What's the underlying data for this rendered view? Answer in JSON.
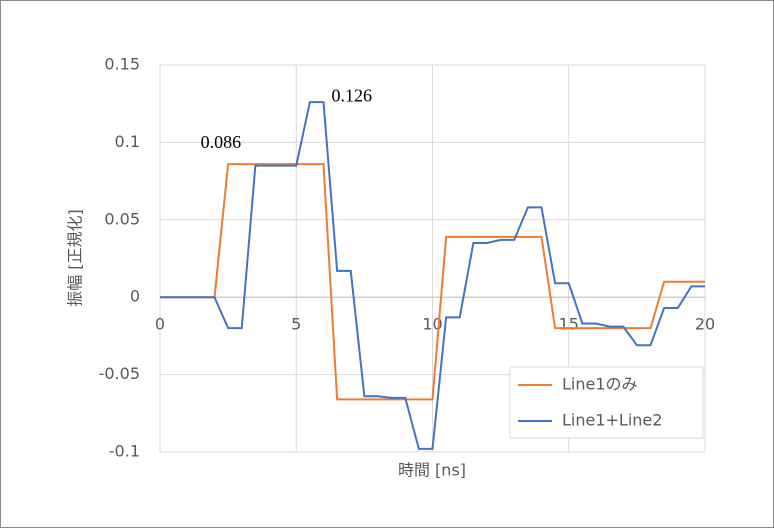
{
  "chart_data": {
    "type": "line",
    "xlabel": "時間 [ns]",
    "ylabel": "振幅 [正規化]",
    "xlim": [
      0,
      20
    ],
    "xticks": [
      0,
      5,
      10,
      15,
      20
    ],
    "ylim": [
      -0.1,
      0.15
    ],
    "yticks": [
      -0.1,
      -0.05,
      0,
      0.05,
      0.1,
      0.15
    ],
    "grid": true,
    "legend": "lower right",
    "series": [
      {
        "name": "Line1のみ",
        "color": "#ed7d31",
        "x": [
          0,
          2,
          2.5,
          6,
          6.5,
          10,
          10.5,
          14,
          14.5,
          18,
          18.5,
          20
        ],
        "values": [
          0,
          0,
          0.086,
          0.086,
          -0.066,
          -0.066,
          0.039,
          0.039,
          -0.02,
          -0.02,
          0.01,
          0.01
        ]
      },
      {
        "name": "Line1+Line2",
        "color": "#4472c4",
        "x": [
          0,
          2,
          2.5,
          3,
          3.5,
          5,
          5.5,
          6,
          6.5,
          7,
          7.5,
          8,
          8.5,
          9,
          9.5,
          10,
          10.5,
          11,
          11.5,
          12,
          12.5,
          13,
          13.5,
          14,
          14.5,
          15,
          15.5,
          16,
          16.5,
          17,
          17.5,
          18,
          18.5,
          19,
          19.5,
          20
        ],
        "values": [
          0,
          0,
          -0.02,
          -0.02,
          0.085,
          0.085,
          0.126,
          0.126,
          0.017,
          0.017,
          -0.064,
          -0.064,
          -0.065,
          -0.065,
          -0.098,
          -0.098,
          -0.013,
          -0.013,
          0.035,
          0.035,
          0.037,
          0.037,
          0.058,
          0.058,
          0.009,
          0.009,
          -0.017,
          -0.017,
          -0.019,
          -0.019,
          -0.031,
          -0.031,
          -0.007,
          -0.007,
          0.007,
          0.007
        ]
      }
    ],
    "annotations": [
      {
        "text": "0.086",
        "x": 2.5,
        "y": 0.086
      },
      {
        "text": "0.126",
        "x": 6,
        "y": 0.126
      }
    ]
  }
}
